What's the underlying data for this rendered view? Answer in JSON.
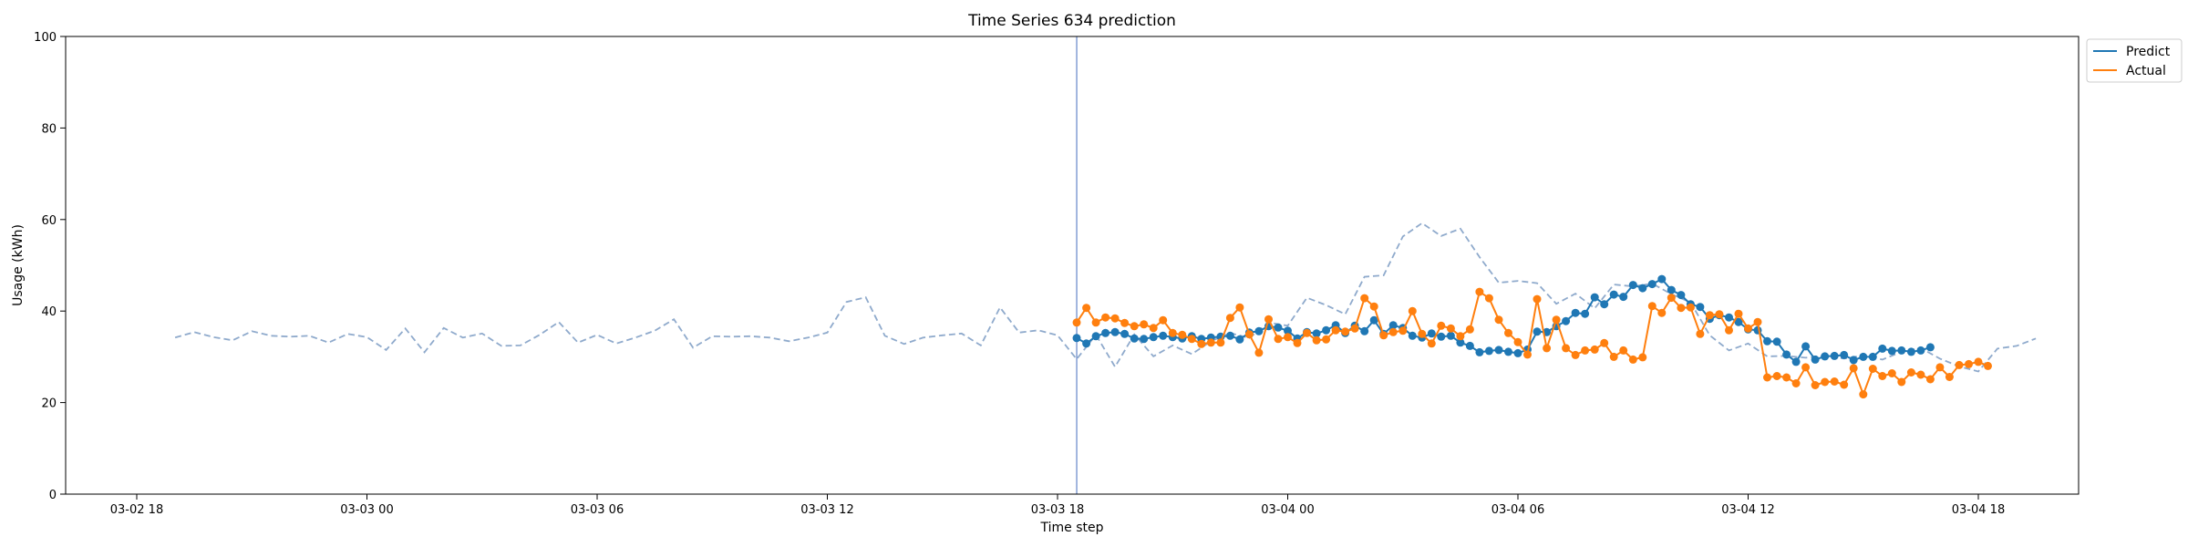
{
  "chart_data": {
    "type": "line",
    "title": "Time Series 634 prediction",
    "xlabel": "Time step",
    "ylabel": "Usage (kWh)",
    "ylim": [
      0,
      100
    ],
    "y_ticks": [
      0,
      20,
      40,
      60,
      80,
      100
    ],
    "x_axis": {
      "start": "2024-03-02 18:00",
      "end": "2024-03-04 18:00",
      "tick_times": [
        "2024-03-02 18:00",
        "2024-03-03 00:00",
        "2024-03-03 06:00",
        "2024-03-03 12:00",
        "2024-03-03 18:00",
        "2024-03-04 00:00",
        "2024-03-04 06:00",
        "2024-03-04 12:00",
        "2024-03-04 18:00"
      ],
      "tick_labels": [
        "03-02 18",
        "03-03 00",
        "03-03 06",
        "03-03 12",
        "03-03 18",
        "03-04 00",
        "03-04 06",
        "03-04 12",
        "03-04 18"
      ]
    },
    "forecast_start": "2024-03-03 18:30",
    "grid": false,
    "legend_position": "top-right, outside plot area",
    "colors": {
      "predict": "#1f77b4",
      "actual": "#ff7f0e",
      "history": "#8faacc",
      "forecast_line": "#6f8fcc"
    },
    "history": {
      "start": "2024-03-02 19:00",
      "step_minutes": 30,
      "values": [
        34.2,
        35.4,
        34.3,
        33.6,
        35.6,
        34.6,
        34.4,
        34.6,
        33.1,
        35.0,
        34.3,
        31.5,
        36.2,
        31.0,
        36.3,
        34.2,
        35.1,
        32.4,
        32.5,
        34.8,
        37.6,
        33.1,
        34.8,
        32.9,
        34.2,
        35.7,
        38.2,
        32.0,
        34.5,
        34.4,
        34.5,
        34.2,
        33.4,
        34.2,
        35.3,
        42.0,
        43.0,
        34.6,
        32.8,
        34.2,
        34.7,
        35.1,
        32.5,
        40.8,
        35.3,
        35.8,
        34.7,
        29.5,
        34.8,
        27.8,
        34.9,
        30.1,
        32.5,
        30.6,
        33.4,
        35.2,
        34.1,
        37.5,
        36.8,
        42.9,
        41.3,
        39.3,
        47.5,
        47.8,
        56.3,
        59.2,
        56.4,
        58.0,
        51.8,
        46.2,
        46.6,
        46.1,
        41.6,
        43.8,
        40.6,
        45.8,
        45.4,
        46.0,
        43.7,
        41.9,
        34.7,
        31.4,
        32.9,
        30.1,
        30.2,
        29.8,
        30.3,
        29.6,
        30.3,
        29.4,
        31.1,
        31.9,
        29.6,
        27.9,
        26.8,
        31.8,
        32.4,
        34.0
      ]
    },
    "series": [
      {
        "name": "Predict",
        "start": "2024-03-03 18:30",
        "step_minutes": 15,
        "values": [
          34.1,
          32.9,
          34.5,
          35.2,
          35.4,
          35.0,
          34.0,
          33.9,
          34.3,
          34.6,
          34.3,
          34.0,
          34.5,
          33.9,
          34.2,
          34.4,
          34.6,
          33.8,
          35.3,
          35.6,
          36.7,
          36.4,
          35.7,
          34.0,
          35.4,
          35.1,
          35.8,
          36.9,
          35.2,
          36.8,
          35.6,
          38.0,
          35.0,
          36.9,
          36.3,
          34.6,
          34.2,
          35.1,
          34.4,
          34.6,
          33.1,
          32.4,
          31.0,
          31.3,
          31.5,
          31.1,
          30.8,
          31.6,
          35.5,
          35.4,
          36.7,
          37.8,
          39.6,
          39.4,
          43.0,
          41.5,
          43.6,
          43.1,
          45.7,
          45.0,
          45.9,
          47.0,
          44.6,
          43.5,
          41.5,
          40.9,
          38.3,
          39.1,
          38.6,
          37.6,
          36.0,
          35.8,
          33.4,
          33.3,
          30.5,
          28.9,
          32.3,
          29.4,
          30.1,
          30.2,
          30.4,
          29.3,
          30.0,
          30.0,
          31.8,
          31.3,
          31.4,
          31.1,
          31.4,
          32.1
        ]
      },
      {
        "name": "Actual",
        "start": "2024-03-03 18:30",
        "step_minutes": 15,
        "values": [
          37.5,
          40.7,
          37.5,
          38.6,
          38.4,
          37.4,
          36.7,
          37.1,
          36.3,
          38.0,
          35.2,
          34.8,
          33.9,
          32.8,
          33.1,
          33.1,
          38.5,
          40.8,
          34.9,
          30.9,
          38.2,
          33.9,
          34.3,
          33.0,
          35.2,
          33.6,
          33.8,
          35.8,
          35.5,
          36.2,
          42.8,
          41.0,
          34.7,
          35.4,
          35.7,
          40.0,
          35.0,
          32.9,
          36.8,
          36.2,
          34.5,
          36.0,
          44.2,
          42.8,
          38.1,
          35.2,
          33.2,
          30.5,
          42.6,
          31.9,
          38.1,
          31.9,
          30.4,
          31.4,
          31.6,
          33.0,
          30.0,
          31.4,
          29.4,
          29.9,
          41.1,
          39.6,
          42.9,
          40.7,
          40.8,
          35.0,
          39.1,
          39.3,
          35.8,
          39.4,
          36.2,
          37.6,
          25.5,
          25.8,
          25.5,
          24.2,
          27.7,
          23.8,
          24.5,
          24.6,
          23.9,
          27.5,
          21.8,
          27.4,
          25.8,
          26.4,
          24.5,
          26.6,
          26.1,
          25.1,
          27.7,
          25.6,
          28.2,
          28.4,
          28.9,
          28.0
        ]
      }
    ]
  }
}
